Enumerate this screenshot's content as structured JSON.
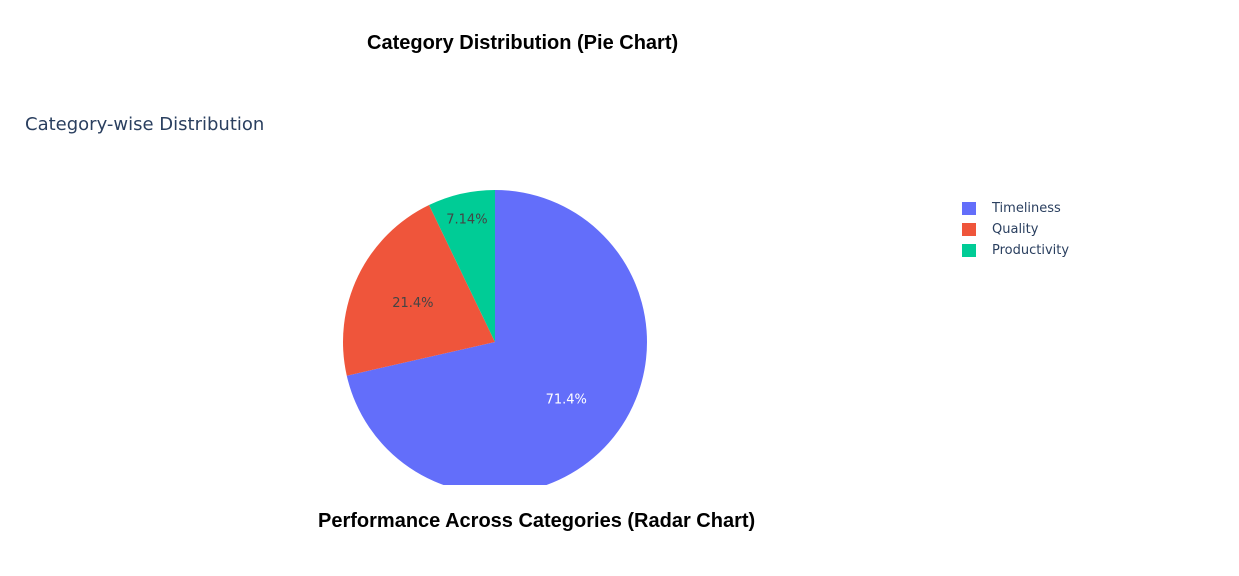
{
  "headings": {
    "pie": "Category Distribution (Pie Chart)",
    "radar": "Performance Across Categories (Radar Chart)"
  },
  "chart_data": {
    "type": "pie",
    "title": "Category-wise Distribution",
    "categories": [
      "Timeliness",
      "Quality",
      "Productivity"
    ],
    "values": [
      71.4,
      21.4,
      7.14
    ],
    "labels": [
      "71.4%",
      "21.4%",
      "7.14%"
    ],
    "colors": [
      "#636efa",
      "#ef553b",
      "#00cc96"
    ],
    "label_colors": [
      "#ffffff",
      "#444444",
      "#444444"
    ],
    "direction": "clockwise",
    "start": "top",
    "legend_position": "right"
  }
}
